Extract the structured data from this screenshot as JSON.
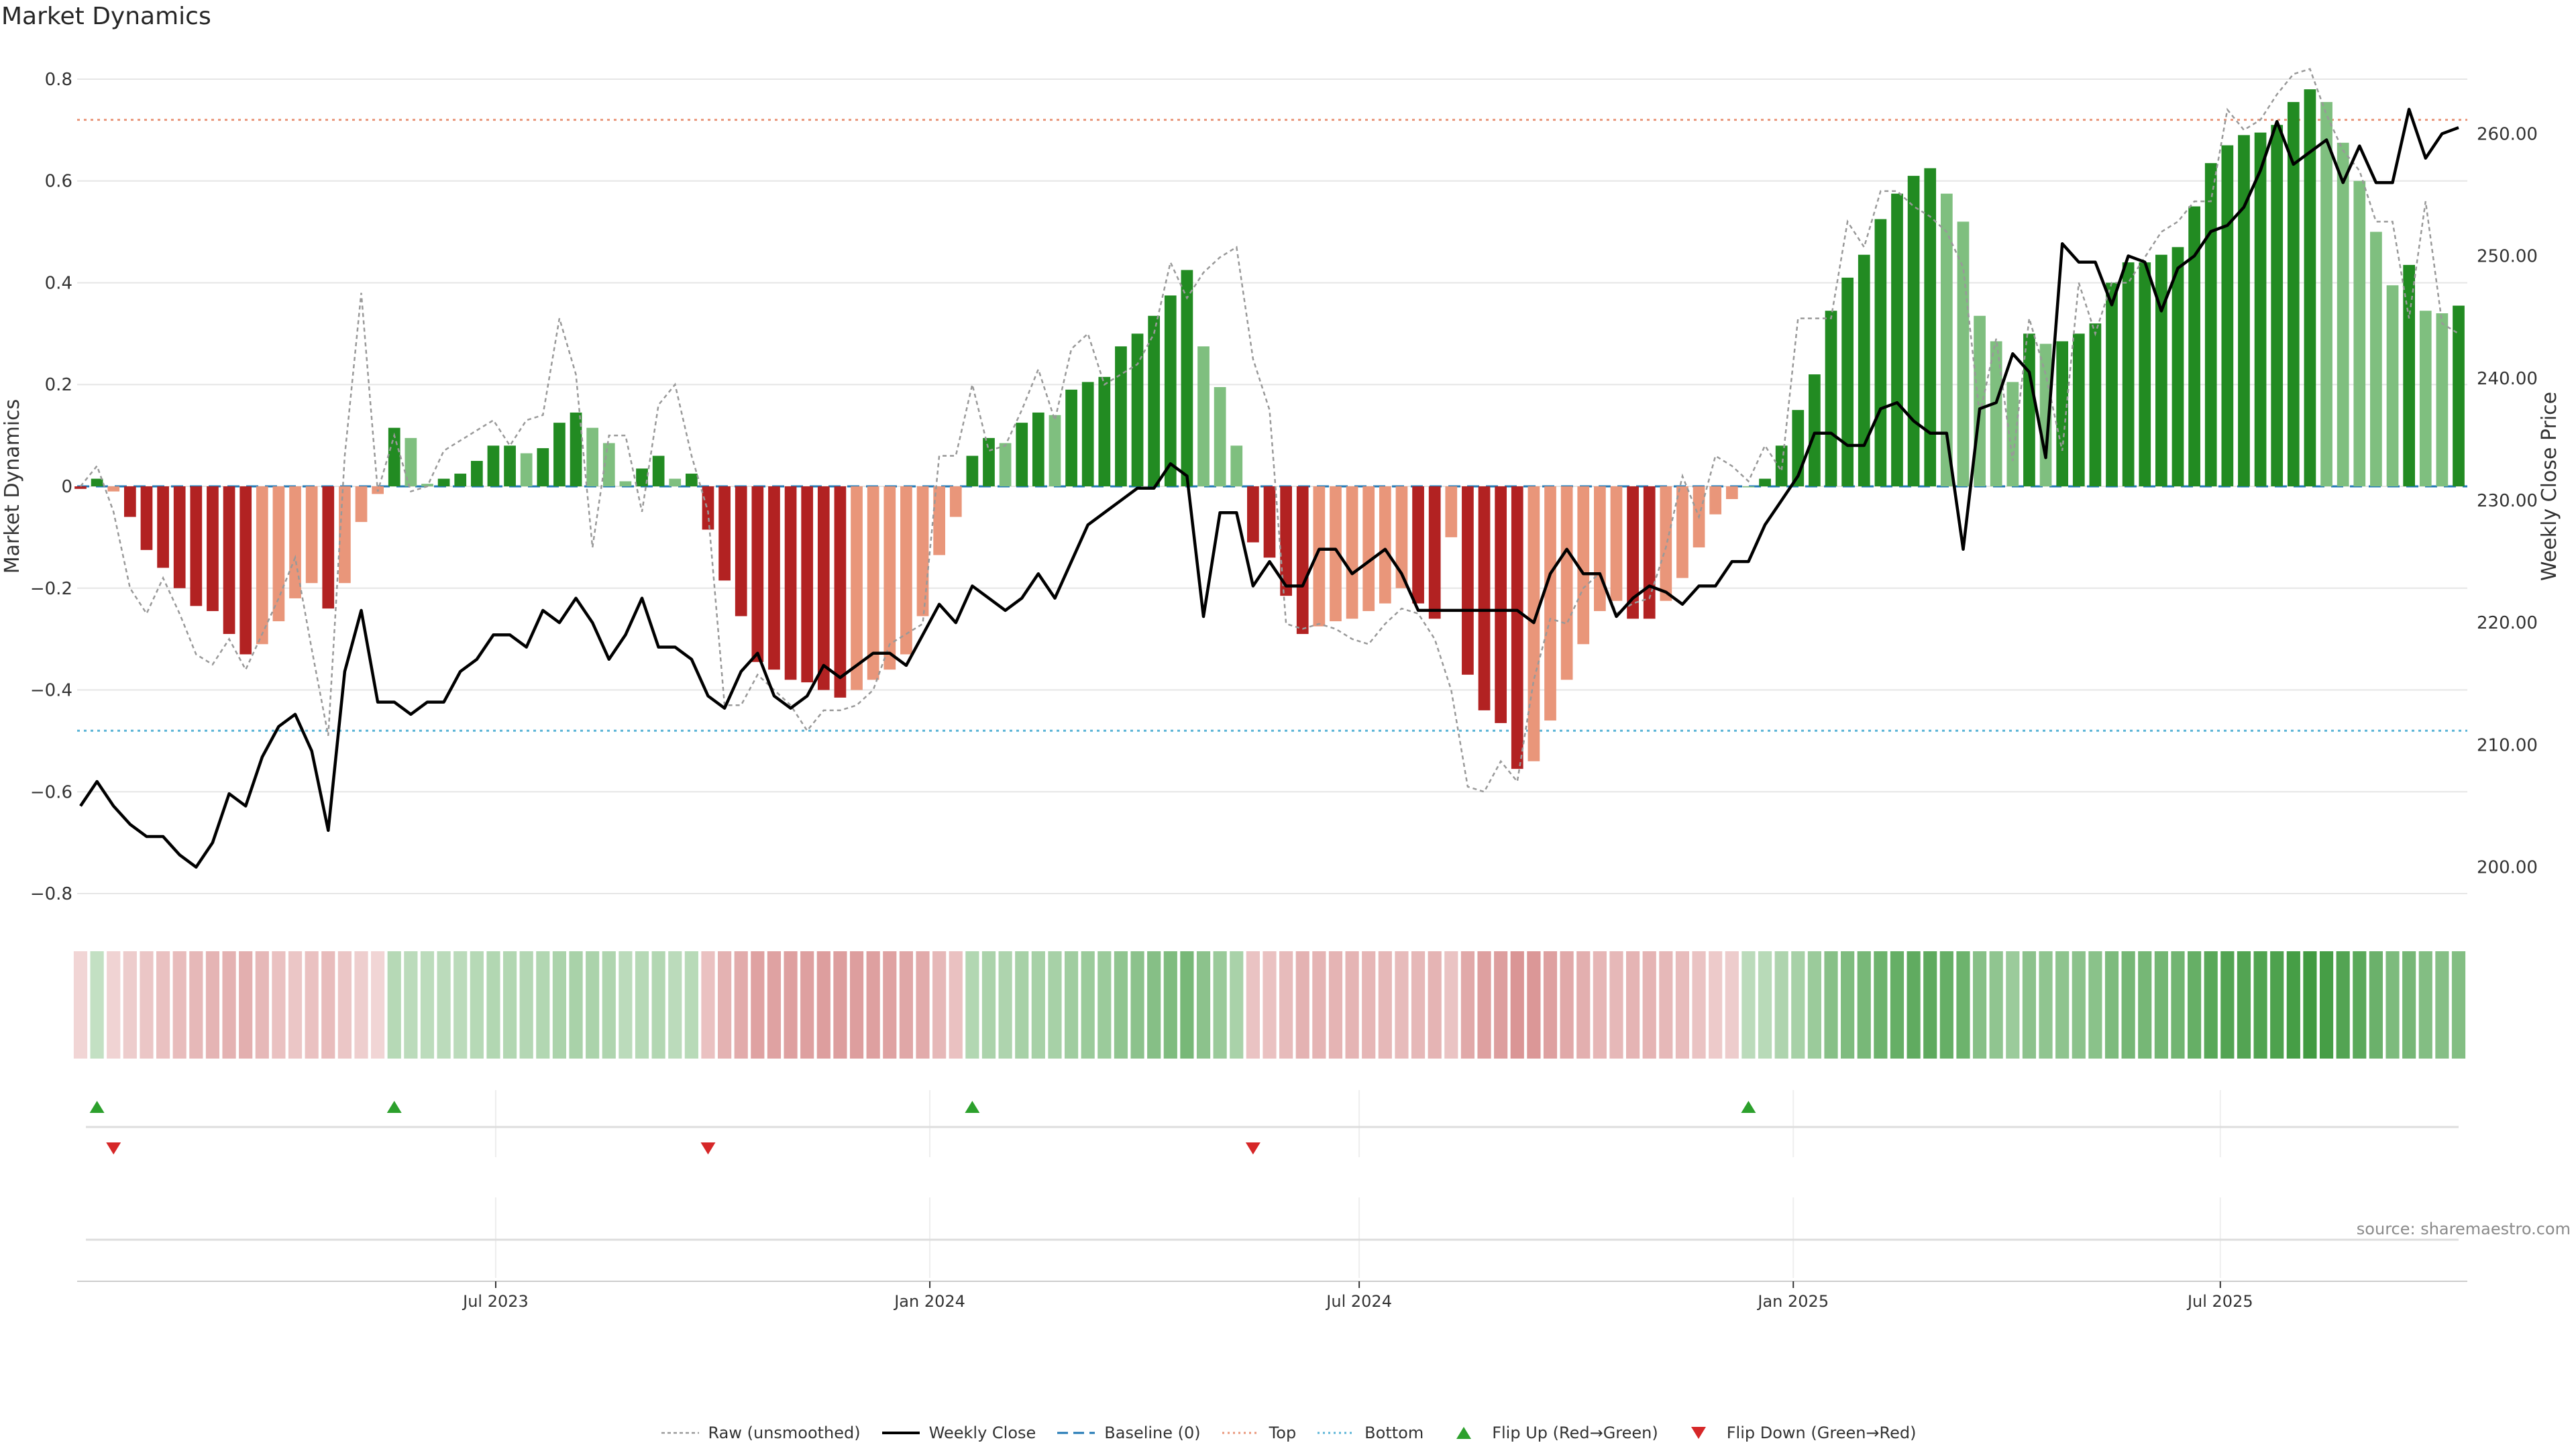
{
  "title": "Market Dynamics",
  "source": "source: sharemaestro.com",
  "colors": {
    "up_strong": "#228b22",
    "up_weak": "#7fbf7f",
    "down_strong": "#b22222",
    "down_weak": "#e9967a",
    "raw": "#999999",
    "close": "#000000",
    "baseline": "#1f77b4",
    "top": "#e9967a",
    "bottom": "#5ab4d6",
    "flip_up": "#2ca02c",
    "flip_down": "#d62728"
  },
  "legend": [
    {
      "key": "raw",
      "label": "Raw (unsmoothed)",
      "icon": "dotted-line-icon"
    },
    {
      "key": "close",
      "label": "Weekly Close",
      "icon": "solid-line-icon"
    },
    {
      "key": "baseline",
      "label": "Baseline (0)",
      "icon": "dashed-line-icon"
    },
    {
      "key": "top",
      "label": "Top",
      "icon": "dotted-line-icon"
    },
    {
      "key": "bottom",
      "label": "Bottom",
      "icon": "dotted-line-icon"
    },
    {
      "key": "flip_up",
      "label": "Flip Up (Red→Green)",
      "icon": "triangle-up-icon"
    },
    {
      "key": "flip_down",
      "label": "Flip Down (Green→Red)",
      "icon": "triangle-down-icon"
    }
  ],
  "chart_data": {
    "type": "bar",
    "title": "Market Dynamics",
    "ylabel": "Market Dynamics",
    "y2label": "Weekly Close Price",
    "ylim": [
      -0.85,
      0.85
    ],
    "y2lim": [
      195.75,
      266.55
    ],
    "yticks": [
      "0.8",
      "0.6",
      "0.4",
      "0.2",
      "0",
      "−0.2",
      "−0.4",
      "−0.6",
      "−0.8"
    ],
    "y2ticks": [
      "260.00",
      "250.00",
      "240.00",
      "230.00",
      "220.00",
      "210.00",
      "200.00"
    ],
    "x_start": "2023-01-06",
    "x_interval_days": 7,
    "xticks": [
      {
        "label": "Jul 2023",
        "date": "2023-07-01"
      },
      {
        "label": "Jan 2024",
        "date": "2024-01-01"
      },
      {
        "label": "Jul 2024",
        "date": "2024-07-01"
      },
      {
        "label": "Jan 2025",
        "date": "2025-01-01"
      },
      {
        "label": "Jul 2025",
        "date": "2025-07-01"
      }
    ],
    "top_level": 0.72,
    "bottom_level": -0.48,
    "baseline": 0,
    "series": [
      {
        "name": "Market Dynamics",
        "values": [
          -0.005,
          0.015,
          -0.01,
          -0.06,
          -0.125,
          -0.16,
          -0.2,
          -0.235,
          -0.245,
          -0.29,
          -0.33,
          -0.31,
          -0.265,
          -0.22,
          -0.19,
          -0.24,
          -0.19,
          -0.07,
          -0.015,
          0.115,
          0.095,
          0.005,
          0.015,
          0.025,
          0.05,
          0.08,
          0.08,
          0.065,
          0.075,
          0.125,
          0.145,
          0.115,
          0.085,
          0.01,
          0.035,
          0.06,
          0.015,
          0.025,
          -0.085,
          -0.185,
          -0.255,
          -0.345,
          -0.36,
          -0.38,
          -0.385,
          -0.4,
          -0.415,
          -0.4,
          -0.38,
          -0.36,
          -0.33,
          -0.255,
          -0.135,
          -0.06,
          0.06,
          0.095,
          0.085,
          0.125,
          0.145,
          0.14,
          0.19,
          0.205,
          0.215,
          0.275,
          0.3,
          0.335,
          0.375,
          0.425,
          0.275,
          0.195,
          0.08,
          -0.11,
          -0.14,
          -0.215,
          -0.29,
          -0.275,
          -0.265,
          -0.26,
          -0.245,
          -0.23,
          -0.2,
          -0.23,
          -0.26,
          -0.1,
          -0.37,
          -0.44,
          -0.465,
          -0.555,
          -0.54,
          -0.46,
          -0.38,
          -0.31,
          -0.245,
          -0.225,
          -0.26,
          -0.26,
          -0.225,
          -0.18,
          -0.12,
          -0.055,
          -0.025,
          0.0,
          0.015,
          0.08,
          0.15,
          0.22,
          0.345,
          0.41,
          0.455,
          0.525,
          0.575,
          0.61,
          0.625,
          0.575,
          0.52,
          0.335,
          0.285,
          0.205,
          0.3,
          0.28,
          0.285,
          0.3,
          0.32,
          0.4,
          0.44,
          0.44,
          0.455,
          0.47,
          0.55,
          0.635,
          0.67,
          0.69,
          0.695,
          0.71,
          0.755,
          0.78,
          0.755,
          0.675,
          0.6,
          0.5,
          0.395,
          0.435,
          0.345,
          0.34,
          0.355
        ]
      },
      {
        "name": "Raw (unsmoothed)",
        "values": [
          0.0,
          0.04,
          -0.05,
          -0.2,
          -0.25,
          -0.18,
          -0.25,
          -0.33,
          -0.35,
          -0.3,
          -0.36,
          -0.29,
          -0.22,
          -0.14,
          -0.32,
          -0.49,
          0.06,
          0.38,
          -0.01,
          0.1,
          -0.01,
          0.0,
          0.07,
          0.09,
          0.11,
          0.13,
          0.08,
          0.13,
          0.14,
          0.33,
          0.22,
          -0.12,
          0.1,
          0.1,
          -0.05,
          0.16,
          0.2,
          0.06,
          -0.05,
          -0.43,
          -0.43,
          -0.37,
          -0.4,
          -0.43,
          -0.48,
          -0.44,
          -0.44,
          -0.43,
          -0.4,
          -0.31,
          -0.29,
          -0.27,
          0.06,
          0.06,
          0.2,
          0.07,
          0.08,
          0.15,
          0.23,
          0.13,
          0.27,
          0.3,
          0.2,
          0.22,
          0.24,
          0.3,
          0.44,
          0.37,
          0.42,
          0.45,
          0.47,
          0.25,
          0.15,
          -0.27,
          -0.28,
          -0.27,
          -0.28,
          -0.3,
          -0.31,
          -0.27,
          -0.24,
          -0.25,
          -0.3,
          -0.4,
          -0.59,
          -0.6,
          -0.54,
          -0.58,
          -0.38,
          -0.26,
          -0.27,
          -0.2,
          -0.17,
          -0.25,
          -0.23,
          -0.22,
          -0.12,
          0.02,
          -0.06,
          0.06,
          0.04,
          0.01,
          0.08,
          0.03,
          0.33,
          0.33,
          0.33,
          0.52,
          0.47,
          0.58,
          0.58,
          0.55,
          0.53,
          0.5,
          0.43,
          0.14,
          0.29,
          0.05,
          0.33,
          0.22,
          0.07,
          0.4,
          0.3,
          0.4,
          0.4,
          0.45,
          0.5,
          0.52,
          0.56,
          0.56,
          0.74,
          0.7,
          0.72,
          0.77,
          0.81,
          0.82,
          0.73,
          0.66,
          0.62,
          0.52,
          0.52,
          0.33,
          0.56,
          0.32,
          0.3
        ]
      },
      {
        "name": "Weekly Close",
        "values": [
          205.0,
          207.0,
          205.0,
          203.5,
          202.5,
          202.5,
          201.0,
          200.0,
          202.0,
          206.0,
          205.0,
          209.0,
          211.5,
          212.5,
          209.5,
          203.0,
          216.0,
          221.0,
          213.5,
          213.5,
          212.5,
          213.5,
          213.5,
          216.0,
          217.0,
          219.0,
          219.0,
          218.0,
          221.0,
          220.0,
          222.0,
          220.0,
          217.0,
          219.0,
          222.0,
          218.0,
          218.0,
          217.0,
          214.0,
          213.0,
          216.0,
          217.5,
          214.0,
          213.0,
          214.0,
          216.5,
          215.5,
          216.5,
          217.5,
          217.5,
          216.5,
          219.0,
          221.5,
          220.0,
          223.0,
          222.0,
          221.0,
          222.0,
          224.0,
          222.0,
          225.0,
          228.0,
          229.0,
          230.0,
          231.0,
          231.0,
          233.0,
          232.0,
          220.5,
          229.0,
          229.0,
          223.0,
          225.0,
          223.0,
          223.0,
          226.0,
          226.0,
          224.0,
          225.0,
          226.0,
          224.0,
          221.0,
          221.0,
          221.0,
          221.0,
          221.0,
          221.0,
          221.0,
          220.0,
          224.0,
          226.0,
          224.0,
          224.0,
          220.5,
          222.0,
          223.0,
          222.5,
          221.5,
          223.0,
          223.0,
          225.0,
          225.0,
          228.0,
          230.0,
          232.0,
          235.5,
          235.5,
          234.5,
          234.5,
          237.5,
          238.0,
          236.5,
          235.5,
          235.5,
          226.0,
          237.5,
          238.0,
          242.0,
          240.5,
          233.5,
          251.0,
          249.5,
          249.5,
          246.0,
          250.0,
          249.5,
          245.5,
          249.0,
          250.0,
          252.0,
          252.5,
          254.0,
          257.0,
          261.0,
          257.5,
          258.5,
          259.5,
          256.0,
          259.0,
          256.0,
          256.0,
          262.0,
          258.0,
          260.0,
          260.5
        ]
      }
    ],
    "state_strip": [
      -0.16,
      0.16,
      -0.18,
      -0.22,
      -0.26,
      -0.3,
      -0.33,
      -0.36,
      -0.38,
      -0.4,
      -0.42,
      -0.36,
      -0.3,
      -0.26,
      -0.3,
      -0.32,
      -0.26,
      -0.2,
      -0.16,
      0.22,
      0.2,
      0.19,
      0.2,
      0.2,
      0.22,
      0.24,
      0.24,
      0.23,
      0.24,
      0.27,
      0.28,
      0.27,
      0.25,
      0.2,
      0.22,
      0.24,
      0.2,
      0.21,
      -0.3,
      -0.4,
      -0.44,
      -0.5,
      -0.5,
      -0.52,
      -0.52,
      -0.53,
      -0.54,
      -0.53,
      -0.52,
      -0.5,
      -0.48,
      -0.44,
      -0.36,
      -0.3,
      0.24,
      0.27,
      0.26,
      0.29,
      0.3,
      0.3,
      0.33,
      0.35,
      0.35,
      0.4,
      0.42,
      0.45,
      0.48,
      0.52,
      0.42,
      0.36,
      0.28,
      -0.28,
      -0.3,
      -0.34,
      -0.4,
      -0.39,
      -0.38,
      -0.38,
      -0.37,
      -0.36,
      -0.34,
      -0.36,
      -0.38,
      -0.28,
      -0.46,
      -0.52,
      -0.54,
      -0.6,
      -0.58,
      -0.52,
      -0.46,
      -0.42,
      -0.37,
      -0.35,
      -0.38,
      -0.38,
      -0.35,
      -0.32,
      -0.28,
      -0.24,
      -0.22,
      0.2,
      0.21,
      0.26,
      0.3,
      0.35,
      0.44,
      0.48,
      0.52,
      0.57,
      0.6,
      0.63,
      0.64,
      0.6,
      0.57,
      0.44,
      0.4,
      0.35,
      0.42,
      0.4,
      0.41,
      0.42,
      0.43,
      0.5,
      0.53,
      0.53,
      0.54,
      0.55,
      0.6,
      0.66,
      0.69,
      0.7,
      0.71,
      0.72,
      0.76,
      0.78,
      0.76,
      0.7,
      0.65,
      0.58,
      0.5,
      0.53,
      0.46,
      0.45,
      0.46
    ],
    "flip_up_indices": [
      1,
      19,
      54,
      101
    ],
    "flip_down_indices": [
      2,
      38,
      71
    ]
  }
}
